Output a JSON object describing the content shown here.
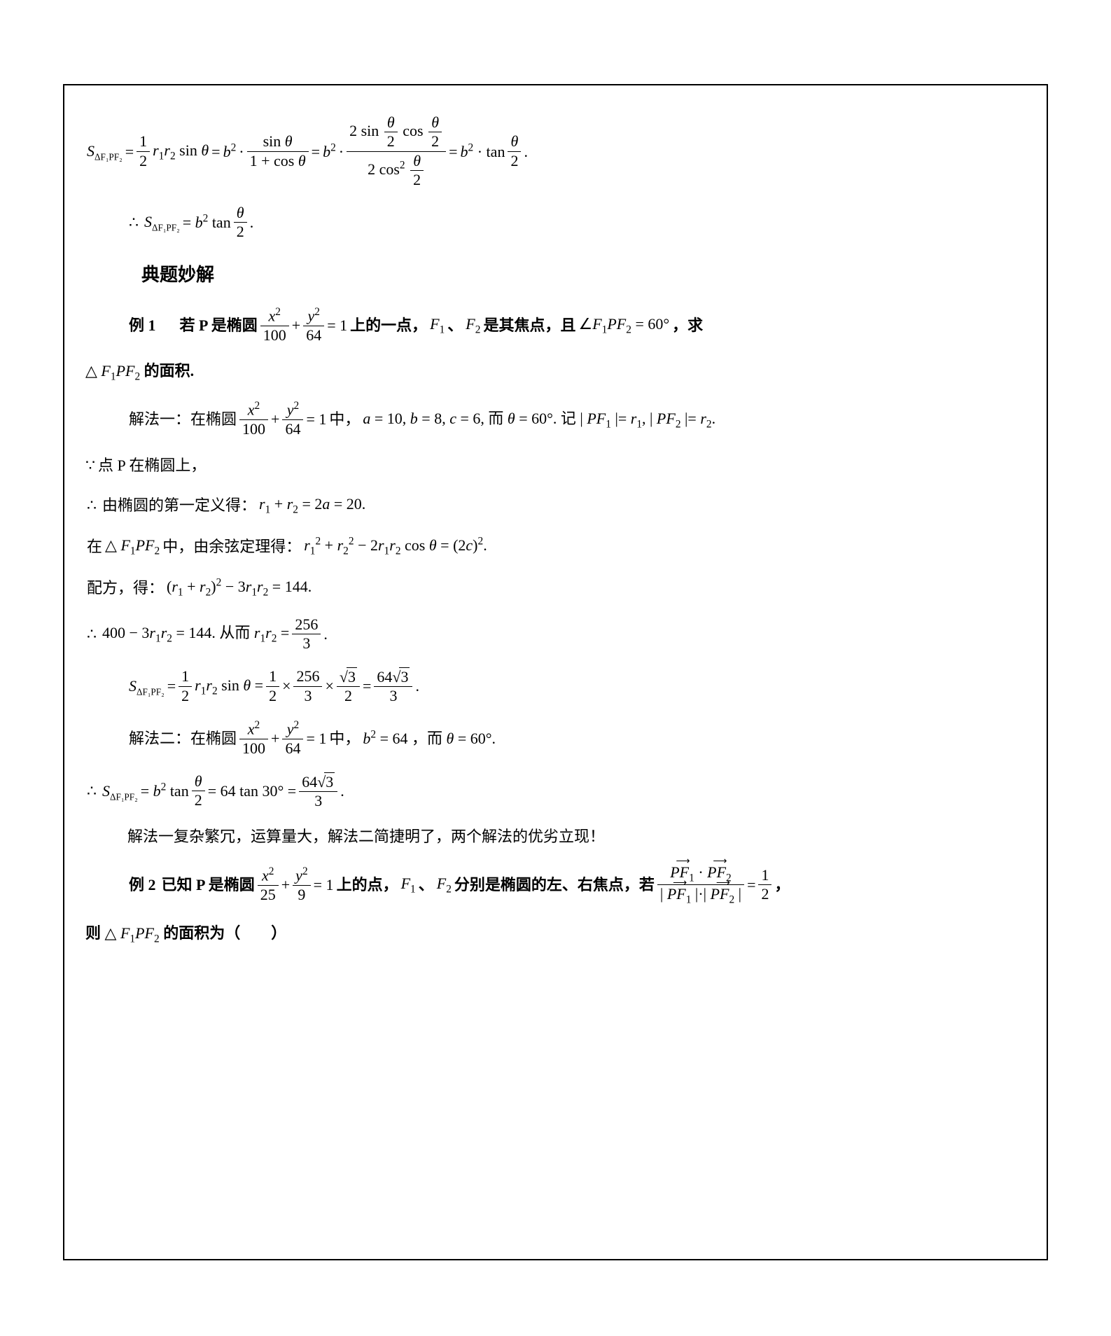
{
  "eq1_prefix": "S",
  "eq1_sub": "ΔF₁PF₂",
  "theta": "θ",
  "half": "2",
  "one": "1",
  "eq_sign": "=",
  "plus": "+",
  "minus": "−",
  "dot": "·",
  "times": "×",
  "b2": "b",
  "r1r2": "r₁r₂",
  "sin": "sin",
  "cos": "cos",
  "tan": "tan",
  "eq1_final_period": ".",
  "therefore_eq": "∴ S",
  "section_title": "典题妙解",
  "ex1_label": "例 1",
  "ex1_text_a": "若 P 是椭圆",
  "ellipse1_x": "x",
  "ellipse1_y": "y",
  "ellipse1_a": "100",
  "ellipse1_b": "64",
  "ex1_text_b": "上的一点，",
  "F1": "F₁",
  "F2": "F₂",
  "ex1_text_c": "是其焦点，且",
  "angle_eq": "= 60°",
  "ex1_text_d": "，求",
  "triangle_text": "的面积.",
  "sol1_label": "解法一：在椭圆",
  "sol1_mid": "中，",
  "sol1_vals": "a = 10, b = 8, c = 6, 而 θ = 60°. 记 | PF₁ |= r₁, | PF₂ |= r₂.",
  "line_bec": "点 P 在椭圆上，",
  "line_def": "由椭圆的第一定义得：",
  "def_eq": "r₁ + r₂ = 2a = 20.",
  "cos_line_a": "在",
  "cos_line_b": "中，由余弦定理得：",
  "cos_eq": "r₁² + r₂² − 2r₁r₂ cos θ = (2c)².",
  "pf_line_a": "配方，得：",
  "pf_eq": "(r₁ + r₂)² − 3r₁r₂ = 144.",
  "calc1": "400 − 3r₁r₂ = 144. 从而 r₁r₂ =",
  "frac_256_3_num": "256",
  "frac_256_3_den": "3",
  "area_calc_1_2": "1",
  "area_calc_256": "256",
  "area_calc_3": "3",
  "area_calc_sqrt3": "3",
  "area_calc_2den": "2",
  "area_calc_64sqrt3": "64",
  "sol2_label": "解法二：在椭圆",
  "sol2_vals": "b² = 64 ，而 θ = 60°.",
  "sol2_calc": "= 64 tan 30° =",
  "compare": "解法一复杂繁冗，运算量大，解法二简捷明了，两个解法的优劣立现！",
  "ex2_label": "例 2",
  "ex2_text_a": "已知 P 是椭圆",
  "ellipse2_a": "25",
  "ellipse2_b": "9",
  "ex2_text_b": "上的点，",
  "ex2_text_c": "分别是椭圆的左、右焦点，若",
  "ex2_eq_rhs": "1",
  "ex2_text_d": "，",
  "ex2_final": "则",
  "ex2_paren": "的面积为（　　）",
  "PF1": "PF₁",
  "PF2": "PF₂",
  "colors": {
    "text": "#000000",
    "background": "#ffffff",
    "border": "#000000"
  },
  "fonts": {
    "body_size": 22,
    "title_size": 26,
    "family": "Times New Roman / SimSun"
  }
}
